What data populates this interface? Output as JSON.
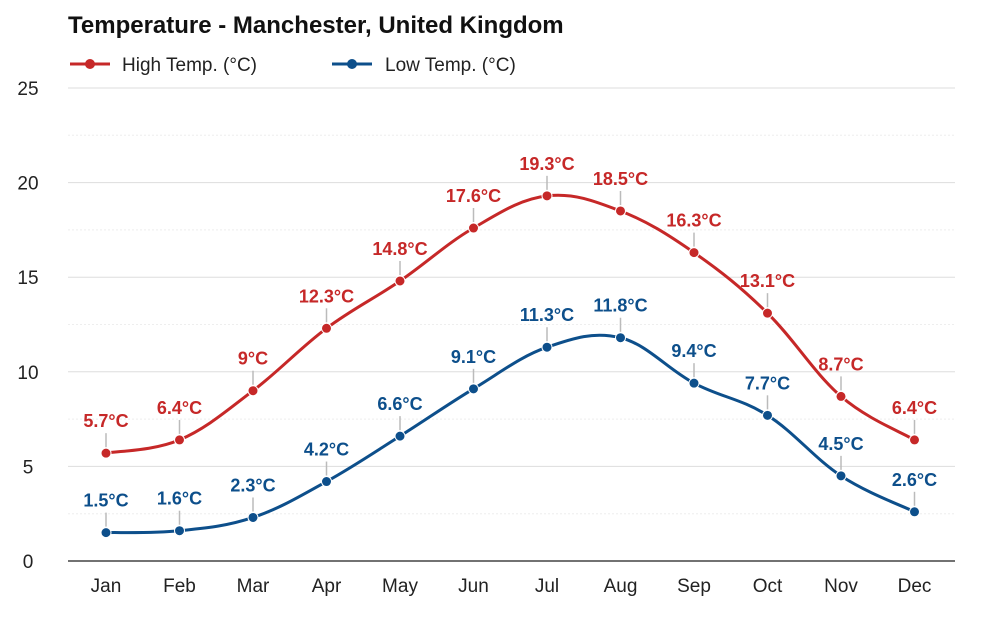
{
  "chart_data": {
    "type": "line",
    "title": "Temperature - Manchester, United Kingdom",
    "categories": [
      "Jan",
      "Feb",
      "Mar",
      "Apr",
      "May",
      "Jun",
      "Jul",
      "Aug",
      "Sep",
      "Oct",
      "Nov",
      "Dec"
    ],
    "series": [
      {
        "name": "High Temp. (°C)",
        "color": "#c62828",
        "values": [
          5.7,
          6.4,
          9,
          12.3,
          14.8,
          17.6,
          19.3,
          18.5,
          16.3,
          13.1,
          8.7,
          6.4
        ],
        "labels": [
          "5.7°C",
          "6.4°C",
          "9°C",
          "12.3°C",
          "14.8°C",
          "17.6°C",
          "19.3°C",
          "18.5°C",
          "16.3°C",
          "13.1°C",
          "8.7°C",
          "6.4°C"
        ]
      },
      {
        "name": "Low Temp. (°C)",
        "color": "#0d4f8b",
        "values": [
          1.5,
          1.6,
          2.3,
          4.2,
          6.6,
          9.1,
          11.3,
          11.8,
          9.4,
          7.7,
          4.5,
          2.6
        ],
        "labels": [
          "1.5°C",
          "1.6°C",
          "2.3°C",
          "4.2°C",
          "6.6°C",
          "9.1°C",
          "11.3°C",
          "11.8°C",
          "9.4°C",
          "7.7°C",
          "4.5°C",
          "2.6°C"
        ]
      }
    ],
    "ylim": [
      0,
      25
    ],
    "yticks": [
      0,
      5,
      10,
      15,
      20,
      25
    ],
    "grid": true,
    "legend": "top-left"
  }
}
